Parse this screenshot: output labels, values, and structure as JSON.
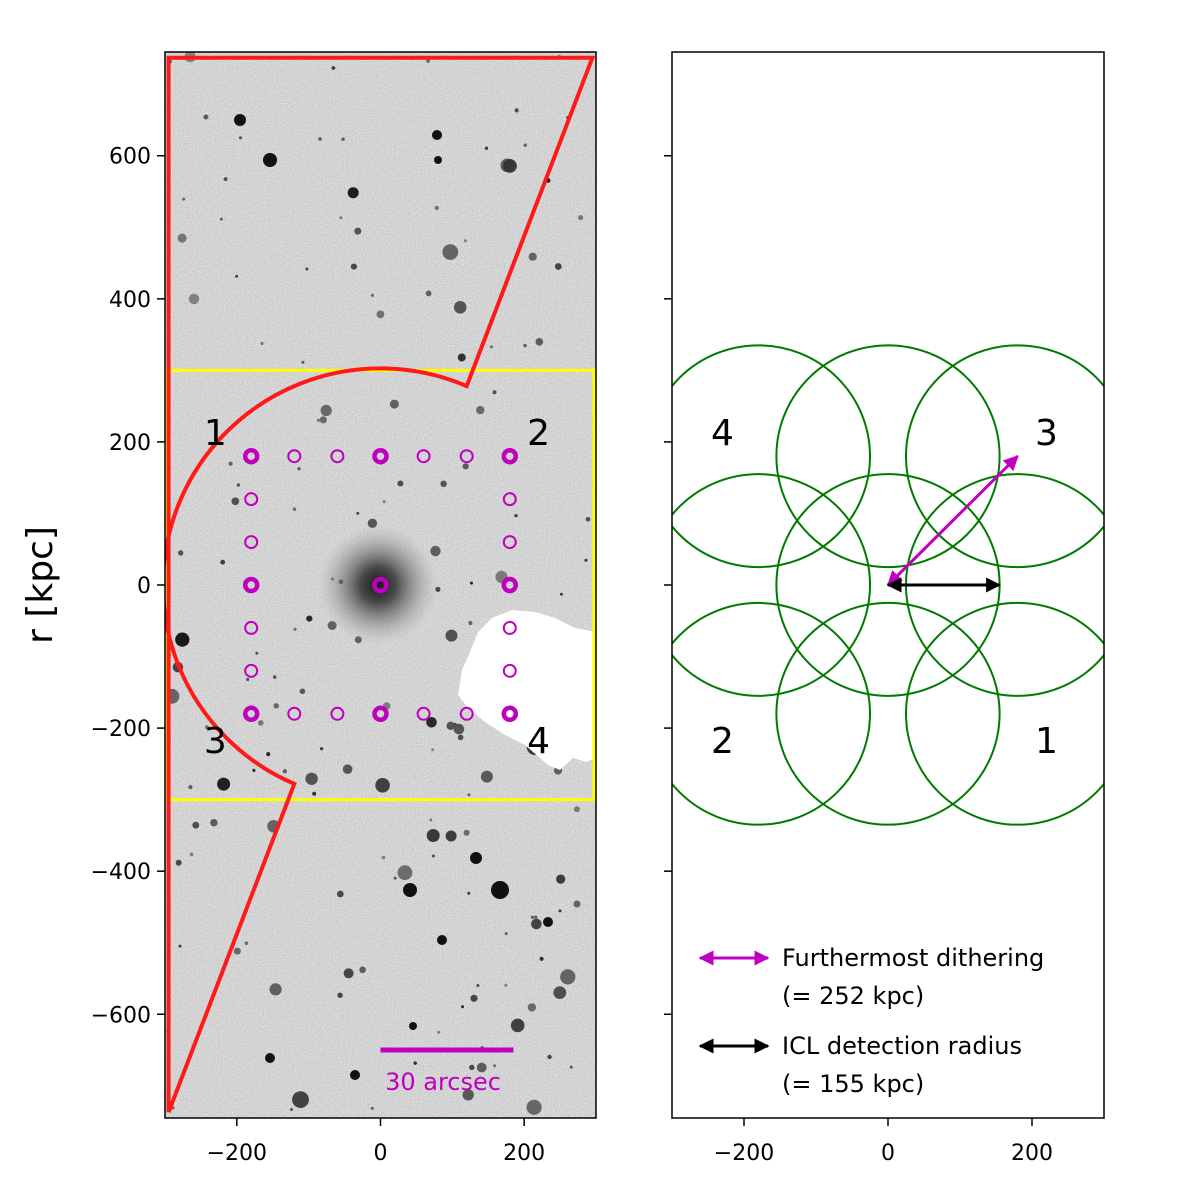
{
  "chart_data": [
    {
      "type": "scatter",
      "panel": "left",
      "description_label": "",
      "xlim": [
        -300,
        300
      ],
      "ylim": [
        -745,
        745
      ],
      "xticks": [
        -200,
        0,
        200
      ],
      "xtick_labels": [
        "−200",
        "0",
        "200"
      ],
      "yticks": [
        600,
        400,
        200,
        0,
        -200,
        -400,
        -600
      ],
      "ytick_labels": [
        "600",
        "400",
        "200",
        "0",
        "−200",
        "−400",
        "−600"
      ],
      "ylabel": "r [kpc]",
      "yellow_box": {
        "x": [
          -300,
          300
        ],
        "y": [
          -300,
          300
        ]
      },
      "red_outline": {
        "radius": 300,
        "top_right": [
          295,
          737
        ],
        "notch_top": [
          120,
          278
        ],
        "notch_bottom": [
          -120,
          -278
        ],
        "bottom_left": [
          -295,
          -737
        ]
      },
      "quadrant_labels": [
        {
          "text": "1",
          "x": -230,
          "y": 215
        },
        {
          "text": "2",
          "x": 220,
          "y": 215
        },
        {
          "text": "3",
          "x": -230,
          "y": -215
        },
        {
          "text": "4",
          "x": 220,
          "y": -215
        }
      ],
      "dither_points": {
        "major": [
          [
            -180,
            180
          ],
          [
            0,
            180
          ],
          [
            180,
            180
          ],
          [
            -180,
            0
          ],
          [
            0,
            0
          ],
          [
            180,
            0
          ],
          [
            -180,
            -180
          ],
          [
            0,
            -180
          ],
          [
            180,
            -180
          ]
        ],
        "minor": [
          [
            -120,
            180
          ],
          [
            -60,
            180
          ],
          [
            60,
            180
          ],
          [
            120,
            180
          ],
          [
            -180,
            120
          ],
          [
            -180,
            60
          ],
          [
            -180,
            -60
          ],
          [
            -180,
            -120
          ],
          [
            180,
            120
          ],
          [
            180,
            60
          ],
          [
            180,
            -60
          ],
          [
            180,
            -120
          ],
          [
            -120,
            -180
          ],
          [
            -60,
            -180
          ],
          [
            60,
            -180
          ],
          [
            120,
            -180
          ]
        ]
      },
      "scale_bar": {
        "label": "30 arcsec",
        "x": [
          0,
          185
        ],
        "y": -650
      }
    },
    {
      "type": "scatter",
      "panel": "right",
      "xlim": [
        -300,
        300
      ],
      "ylim": [
        -745,
        745
      ],
      "xticks": [
        -200,
        0,
        200
      ],
      "xtick_labels": [
        "−200",
        "0",
        "200"
      ],
      "circle_radius": 155,
      "circle_centers": [
        [
          -180,
          180
        ],
        [
          0,
          180
        ],
        [
          180,
          180
        ],
        [
          -180,
          0
        ],
        [
          0,
          0
        ],
        [
          180,
          0
        ],
        [
          -180,
          -180
        ],
        [
          0,
          -180
        ],
        [
          180,
          -180
        ]
      ],
      "quadrant_labels": [
        {
          "text": "4",
          "x": -230,
          "y": 215
        },
        {
          "text": "3",
          "x": 220,
          "y": 215
        },
        {
          "text": "2",
          "x": -230,
          "y": -215
        },
        {
          "text": "1",
          "x": 220,
          "y": -215
        }
      ],
      "arrows": [
        {
          "name": "furthermost-dithering",
          "from": [
            0,
            0
          ],
          "to": [
            180,
            180
          ],
          "color": "#bf00bf"
        },
        {
          "name": "icl-detection-radius",
          "from": [
            0,
            0
          ],
          "to": [
            155,
            0
          ],
          "color": "#000000"
        }
      ],
      "legend": [
        {
          "line1": "Furthermost dithering",
          "line2": "(= 252 kpc)",
          "color": "#bf00bf"
        },
        {
          "line1": "ICL detection radius",
          "line2": "(= 155 kpc)",
          "color": "#000000"
        }
      ]
    }
  ],
  "colors": {
    "red": "#ff1a1a",
    "yellow": "#ffff00",
    "magenta": "#bf00bf",
    "green": "#007a00",
    "sky": "#a8a8a8"
  }
}
